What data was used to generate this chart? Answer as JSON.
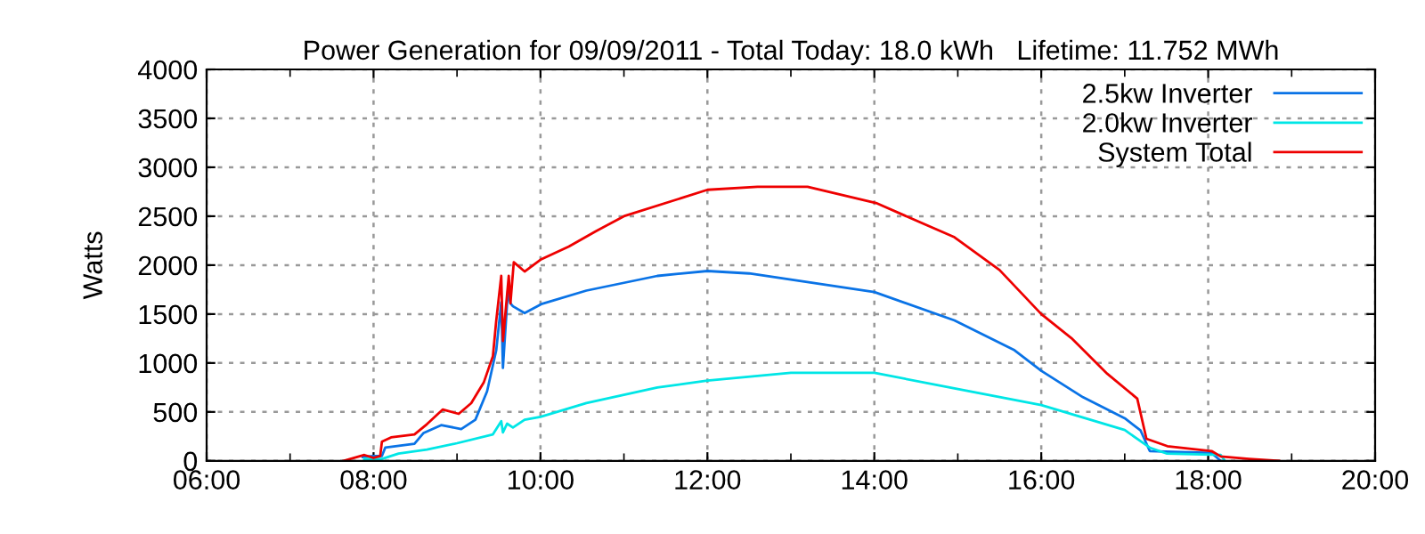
{
  "chart_data": {
    "type": "line",
    "title": "Power Generation for 09/09/2011 - Total Today: 18.0 kWh   Lifetime: 11.752 MWh",
    "ylabel": "Watts",
    "xlim": [
      6,
      20
    ],
    "ylim": [
      0,
      4000
    ],
    "xticks": [
      {
        "value": 6,
        "label": "06:00"
      },
      {
        "value": 7,
        "label": null
      },
      {
        "value": 8,
        "label": "08:00"
      },
      {
        "value": 9,
        "label": null
      },
      {
        "value": 10,
        "label": "10:00"
      },
      {
        "value": 11,
        "label": null
      },
      {
        "value": 12,
        "label": "12:00"
      },
      {
        "value": 13,
        "label": null
      },
      {
        "value": 14,
        "label": "14:00"
      },
      {
        "value": 15,
        "label": null
      },
      {
        "value": 16,
        "label": "16:00"
      },
      {
        "value": 17,
        "label": null
      },
      {
        "value": 18,
        "label": "18:00"
      },
      {
        "value": 19,
        "label": null
      },
      {
        "value": 20,
        "label": "20:00"
      }
    ],
    "yticks": [
      0,
      500,
      1000,
      1500,
      2000,
      2500,
      3000,
      3500,
      4000
    ],
    "grid": true,
    "legend": "top right",
    "marker": "none",
    "line_style": "solid",
    "series": [
      {
        "name": "2.5kw Inverter",
        "color": "#0a73e6",
        "x": [
          7.87,
          8.0,
          8.1,
          8.14,
          8.49,
          8.6,
          8.81,
          9.05,
          9.22,
          9.36,
          9.47,
          9.53,
          9.55,
          9.61,
          9.64,
          9.67,
          9.81,
          10.02,
          10.55,
          11.4,
          12.0,
          12.5,
          14.0,
          14.96,
          15.68,
          16.0,
          16.5,
          17.0,
          17.19,
          17.3,
          18.04,
          18.15
        ],
        "values": [
          40,
          50,
          50,
          135,
          175,
          285,
          365,
          325,
          420,
          710,
          1130,
          1620,
          950,
          1740,
          1610,
          1580,
          1510,
          1605,
          1740,
          1890,
          1940,
          1915,
          1725,
          1435,
          1130,
          920,
          650,
          435,
          310,
          100,
          80,
          0
        ]
      },
      {
        "name": "2.0kw Inverter",
        "color": "#00e6e6",
        "x": [
          7.89,
          8.1,
          8.3,
          8.64,
          9.0,
          9.43,
          9.53,
          9.55,
          9.6,
          9.67,
          9.81,
          10.0,
          10.55,
          11.4,
          12.0,
          13.0,
          14.0,
          14.96,
          16.0,
          17.0,
          17.3,
          17.5,
          18.15,
          18.2
        ],
        "values": [
          20,
          20,
          75,
          115,
          180,
          270,
          405,
          290,
          380,
          340,
          420,
          450,
          590,
          750,
          820,
          900,
          900,
          740,
          570,
          315,
          135,
          75,
          60,
          0
        ]
      },
      {
        "name": "System Total",
        "color": "#ee0000",
        "x": [
          7.64,
          7.89,
          8.0,
          8.08,
          8.1,
          8.21,
          8.49,
          8.64,
          8.83,
          9.02,
          9.17,
          9.32,
          9.43,
          9.47,
          9.53,
          9.55,
          9.62,
          9.64,
          9.68,
          9.81,
          10.0,
          10.34,
          10.66,
          11.0,
          12.0,
          12.6,
          13.2,
          14.02,
          14.96,
          15.5,
          16.0,
          16.36,
          16.79,
          17.15,
          17.26,
          17.51,
          18.04,
          18.15,
          18.49,
          18.85
        ],
        "values": [
          0,
          60,
          30,
          50,
          195,
          240,
          270,
          375,
          525,
          480,
          590,
          800,
          1070,
          1435,
          1890,
          1225,
          1890,
          1610,
          2030,
          1935,
          2055,
          2190,
          2345,
          2500,
          2770,
          2800,
          2800,
          2635,
          2285,
          1950,
          1500,
          1255,
          890,
          636,
          225,
          150,
          100,
          45,
          20,
          0
        ]
      }
    ]
  }
}
